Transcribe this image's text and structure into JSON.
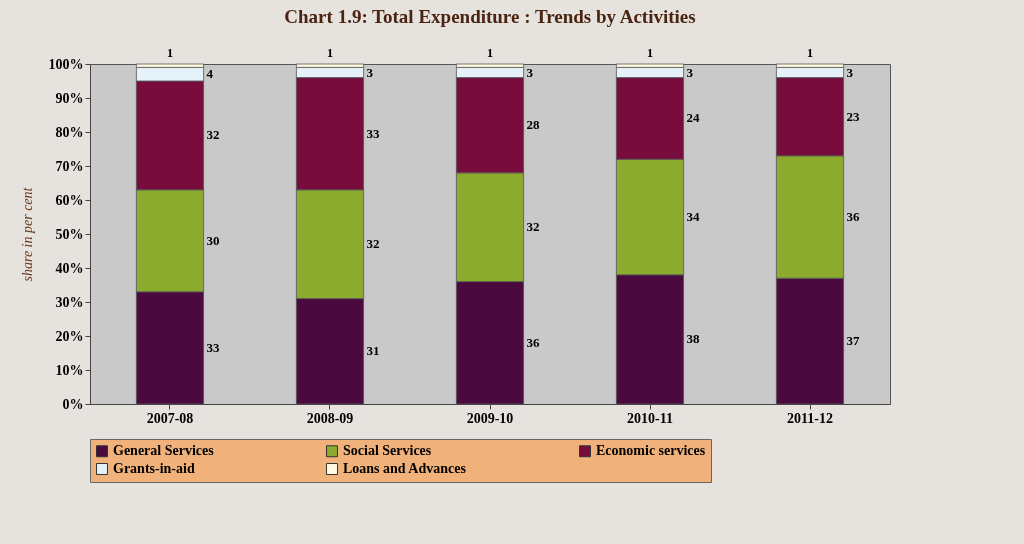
{
  "chart_data": {
    "type": "bar",
    "stacked": true,
    "title": "Chart 1.9: Total Expenditure : Trends by Activities",
    "ylabel": "share in per cent",
    "categories": [
      "2007-08",
      "2008-09",
      "2009-10",
      "2010-11",
      "2011-12"
    ],
    "series": [
      {
        "name": "General Services",
        "color": "#4a0a3e",
        "values": [
          33,
          31,
          36,
          38,
          37
        ]
      },
      {
        "name": "Social Services",
        "color": "#8caa2e",
        "values": [
          30,
          32,
          32,
          34,
          36
        ]
      },
      {
        "name": "Economic services",
        "color": "#780c3c",
        "values": [
          32,
          33,
          28,
          24,
          23
        ]
      },
      {
        "name": "Grants-in-aid",
        "color": "#e6f2fa",
        "values": [
          4,
          3,
          3,
          3,
          3
        ]
      },
      {
        "name": "Loans and Advances",
        "color": "#fffbe0",
        "values": [
          1,
          1,
          1,
          1,
          1
        ]
      }
    ],
    "ylim": [
      0,
      100
    ],
    "yticks": [
      {
        "value": 0,
        "label": "0%"
      },
      {
        "value": 10,
        "label": "10%"
      },
      {
        "value": 20,
        "label": "20%"
      },
      {
        "value": 30,
        "label": "30%"
      },
      {
        "value": 40,
        "label": "40%"
      },
      {
        "value": 50,
        "label": "50%"
      },
      {
        "value": 60,
        "label": "60%"
      },
      {
        "value": 70,
        "label": "70%"
      },
      {
        "value": 80,
        "label": "80%"
      },
      {
        "value": 90,
        "label": "90%"
      },
      {
        "value": 100,
        "label": "100%"
      }
    ],
    "grid": false,
    "legend": "bottom",
    "data_labels": true
  }
}
